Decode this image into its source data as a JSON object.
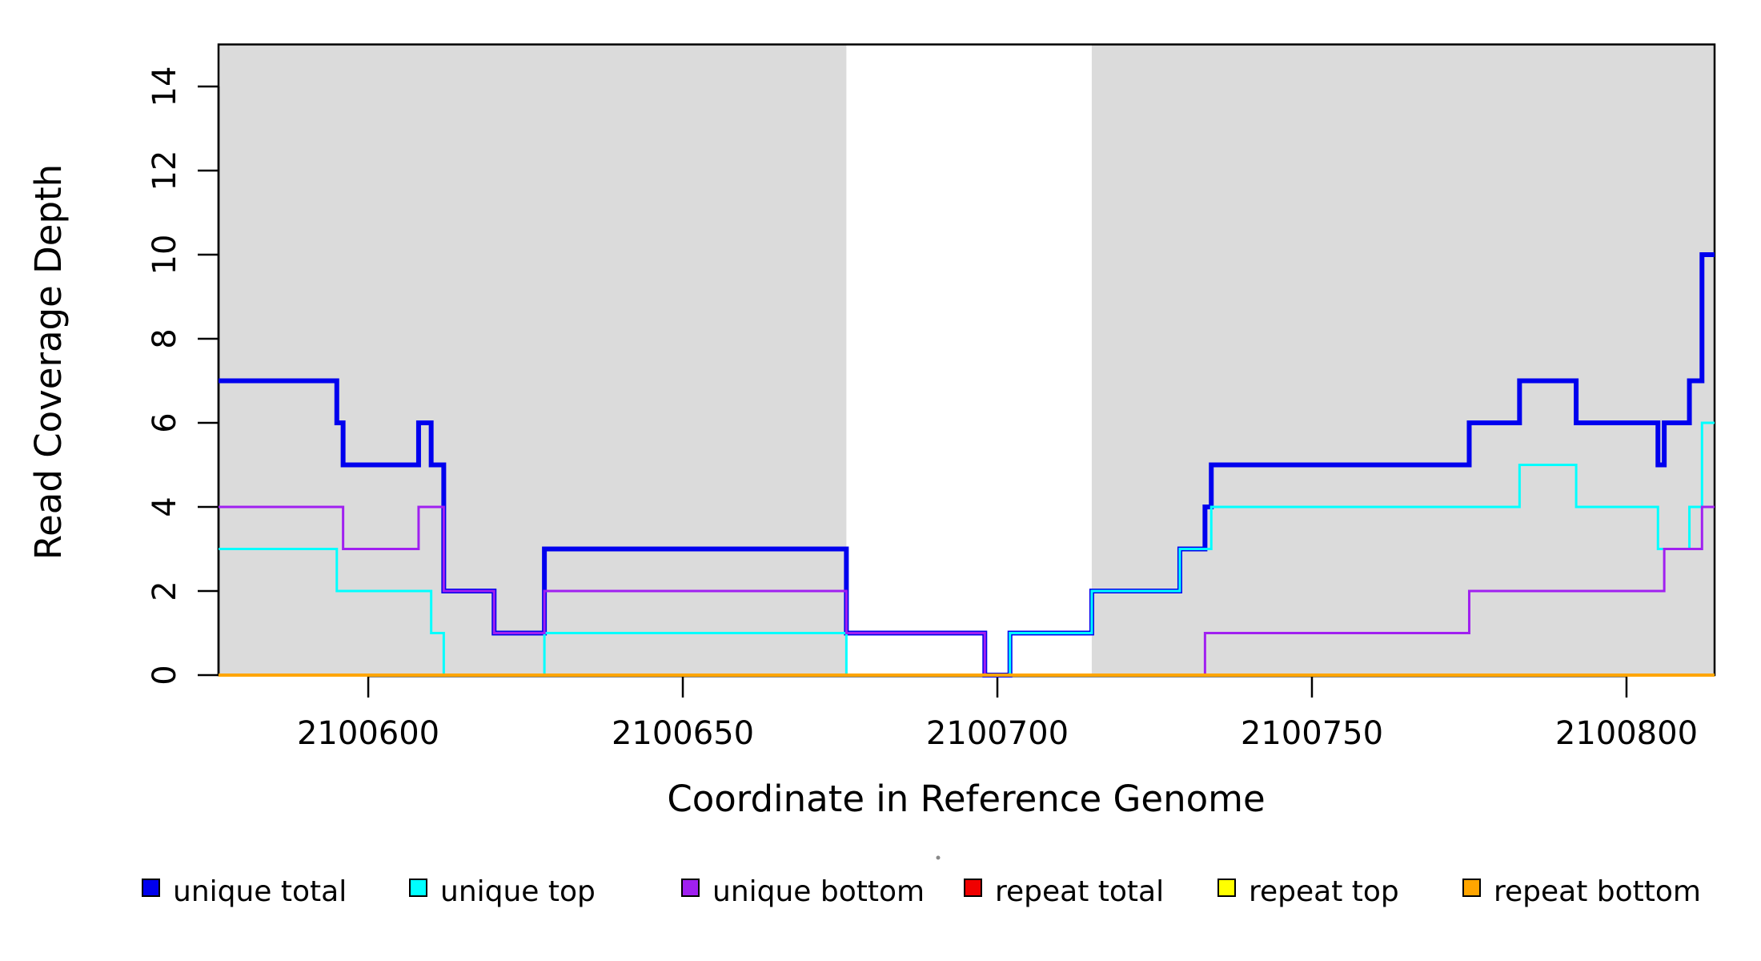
{
  "figure": {
    "background": "#FFFFFF",
    "plot_box_color": "#000000"
  },
  "axes": {
    "ylabel": "Read Coverage Depth",
    "xlabel": "Coordinate in Reference Genome"
  },
  "chart_data": {
    "type": "line",
    "subtype": "step",
    "title": "",
    "xlabel": "Coordinate in Reference Genome",
    "ylabel": "Read Coverage Depth",
    "xlim": [
      2100576.2,
      2100814
    ],
    "ylim": [
      0,
      15
    ],
    "x_ticks": [
      2100600,
      2100650,
      2100700,
      2100750,
      2100800
    ],
    "y_ticks": [
      0,
      2,
      4,
      6,
      8,
      10,
      12,
      14
    ],
    "grid": false,
    "legend_position": "bottom",
    "shaded_regions": [
      {
        "from": 2100576.2,
        "to": 2100676,
        "color": "#DBDBDB"
      },
      {
        "from": 2100715,
        "to": 2100814,
        "color": "#DBDBDB"
      }
    ],
    "series": [
      {
        "name": "unique total",
        "color": "#0000EE",
        "line_width": 6,
        "steps": [
          [
            2100576.2,
            7
          ],
          [
            2100595,
            6
          ],
          [
            2100596,
            5
          ],
          [
            2100608,
            6
          ],
          [
            2100610,
            5
          ],
          [
            2100612,
            2
          ],
          [
            2100620,
            1
          ],
          [
            2100628,
            3
          ],
          [
            2100676,
            1
          ],
          [
            2100698,
            0
          ],
          [
            2100702,
            1
          ],
          [
            2100715,
            2
          ],
          [
            2100729,
            3
          ],
          [
            2100733,
            4
          ],
          [
            2100734,
            5
          ],
          [
            2100775,
            6
          ],
          [
            2100783,
            7
          ],
          [
            2100792,
            6
          ],
          [
            2100805,
            5
          ],
          [
            2100806,
            6
          ],
          [
            2100810,
            7
          ],
          [
            2100812,
            10
          ],
          [
            2100814,
            10
          ]
        ]
      },
      {
        "name": "unique top",
        "color": "#00FFFF",
        "line_width": 3,
        "steps": [
          [
            2100576.2,
            3
          ],
          [
            2100595,
            2
          ],
          [
            2100610,
            1
          ],
          [
            2100612,
            0
          ],
          [
            2100628,
            1
          ],
          [
            2100676,
            0
          ],
          [
            2100702,
            1
          ],
          [
            2100715,
            2
          ],
          [
            2100729,
            3
          ],
          [
            2100734,
            4
          ],
          [
            2100783,
            5
          ],
          [
            2100792,
            4
          ],
          [
            2100805,
            3
          ],
          [
            2100810,
            4
          ],
          [
            2100812,
            6
          ],
          [
            2100814,
            6
          ]
        ]
      },
      {
        "name": "unique bottom",
        "color": "#A020F0",
        "line_width": 3,
        "steps": [
          [
            2100576.2,
            4
          ],
          [
            2100596,
            3
          ],
          [
            2100608,
            4
          ],
          [
            2100612,
            2
          ],
          [
            2100620,
            1
          ],
          [
            2100628,
            2
          ],
          [
            2100676,
            1
          ],
          [
            2100698,
            0
          ],
          [
            2100733,
            1
          ],
          [
            2100775,
            2
          ],
          [
            2100806,
            3
          ],
          [
            2100812,
            4
          ],
          [
            2100814,
            4
          ]
        ]
      },
      {
        "name": "repeat total",
        "color": "#F00000",
        "line_width": 3,
        "steps": [
          [
            2100576.2,
            0
          ],
          [
            2100814,
            0
          ]
        ]
      },
      {
        "name": "repeat top",
        "color": "#FFFF00",
        "line_width": 3,
        "steps": [
          [
            2100576.2,
            0
          ],
          [
            2100814,
            0
          ]
        ]
      },
      {
        "name": "repeat bottom",
        "color": "#FFA500",
        "line_width": 4,
        "steps": [
          [
            2100576.2,
            0
          ],
          [
            2100814,
            0
          ]
        ]
      }
    ]
  },
  "legend": {
    "items": [
      {
        "label": "unique total",
        "color": "#0000EE"
      },
      {
        "label": "unique top",
        "color": "#00FFFF"
      },
      {
        "label": "unique bottom",
        "color": "#A020F0"
      },
      {
        "label": "repeat total",
        "color": "#F00000"
      },
      {
        "label": "repeat top",
        "color": "#FFFF00"
      },
      {
        "label": "repeat bottom",
        "color": "#FFA500"
      }
    ]
  }
}
